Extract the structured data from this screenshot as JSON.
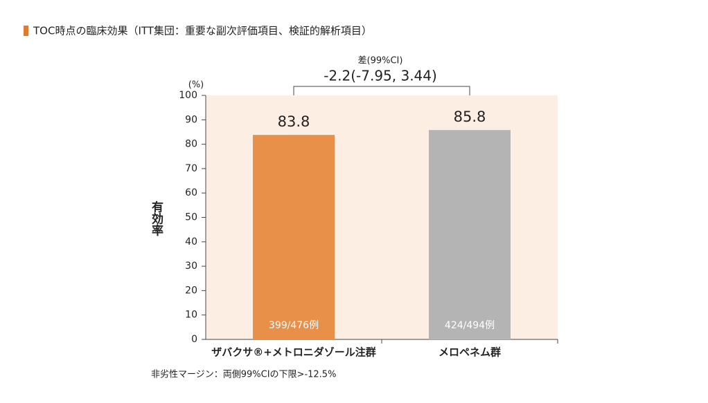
{
  "chart_data": {
    "type": "bar",
    "title": "TOC時点の臨床効果（ITT集団：重要な副次評価項目、検証的解析項目）",
    "ylabel": "有効率",
    "yunit": "(%)",
    "categories": [
      "ザバクサ®+メトロニダゾール注群",
      "メロペネム群"
    ],
    "values": [
      83.8,
      85.8
    ],
    "colors": [
      "#e8904a",
      "#b4b4b4"
    ],
    "bar_notes": [
      "399/476例",
      "424/494例"
    ],
    "difference_label": "差(99%CI)",
    "difference_text": "-2.2(-7.95, 3.44)",
    "footnote": "非劣性マージン：両側99%CIの下限>-12.5%",
    "plot_background": "#fdeee4",
    "ylim": [
      0,
      100
    ],
    "yticks": [
      0,
      10,
      20,
      30,
      40,
      50,
      60,
      70,
      80,
      90,
      100
    ],
    "grid": false
  }
}
